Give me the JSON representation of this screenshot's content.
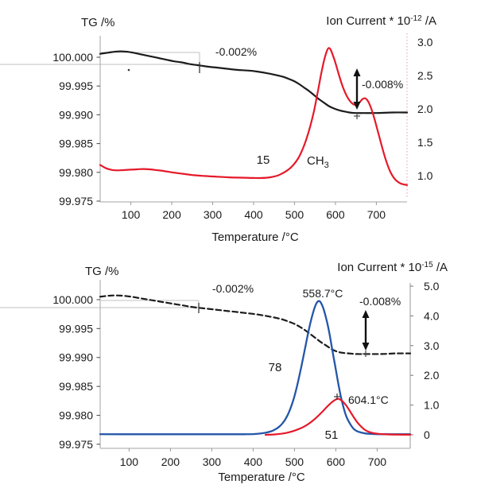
{
  "figure": {
    "background": "#ffffff",
    "description": "TGA-MS thermogravimetry with ion current curves"
  },
  "chart_data": [
    {
      "id": "top-panel",
      "type": "line",
      "left_axis_title": "TG /%",
      "right_axis_title": {
        "prefix": "Ion Current * 10",
        "exponent": "-12",
        "suffix": " /A"
      },
      "xlabel": "Temperature /°C",
      "x_ticks": [
        "100",
        "200",
        "300",
        "400",
        "500",
        "600",
        "700"
      ],
      "left_ticks": [
        "100.000",
        "99.995",
        "99.990",
        "99.985",
        "99.980",
        "99.975"
      ],
      "right_ticks": [
        "3.0",
        "2.5",
        "2.0",
        "1.5",
        "1.0"
      ],
      "xlim": [
        25,
        775
      ],
      "ylim_left": [
        99.97486,
        100.00373
      ],
      "ylim_right": [
        0.6071,
        3.0952
      ],
      "annotations": {
        "step1_label": "-0.002%",
        "step2_label": "-0.008%",
        "mz_label": "15",
        "species_label": "CH",
        "species_sub": "3"
      },
      "series": [
        {
          "name": "TG",
          "axis": "left",
          "color": "#1c1c1c",
          "dash": "solid",
          "width": 2.2,
          "points": [
            [
              25,
              100.0006
            ],
            [
              45,
              100.0008
            ],
            [
              65,
              100.001
            ],
            [
              85,
              100.001
            ],
            [
              105,
              100.0008
            ],
            [
              125,
              100.0005
            ],
            [
              145,
              100.0002
            ],
            [
              165,
              99.9999
            ],
            [
              185,
              99.9996
            ],
            [
              205,
              99.9993
            ],
            [
              225,
              99.9991
            ],
            [
              245,
              99.9988
            ],
            [
              265,
              99.9986
            ],
            [
              285,
              99.9984
            ],
            [
              310,
              99.9982
            ],
            [
              335,
              99.998
            ],
            [
              360,
              99.9978
            ],
            [
              385,
              99.9977
            ],
            [
              410,
              99.9975
            ],
            [
              435,
              99.9972
            ],
            [
              455,
              99.9969
            ],
            [
              472,
              99.9966
            ],
            [
              487,
              99.9962
            ],
            [
              500,
              99.9958
            ],
            [
              512,
              99.9953
            ],
            [
              524,
              99.9947
            ],
            [
              536,
              99.9941
            ],
            [
              548,
              99.9934
            ],
            [
              560,
              99.9927
            ],
            [
              572,
              99.9921
            ],
            [
              584,
              99.9915
            ],
            [
              596,
              99.9911
            ],
            [
              608,
              99.9908
            ],
            [
              620,
              99.9906
            ],
            [
              634,
              99.9904
            ],
            [
              650,
              99.9903
            ],
            [
              670,
              99.9903
            ],
            [
              700,
              99.9903
            ],
            [
              740,
              99.9904
            ],
            [
              775,
              99.9904
            ]
          ]
        },
        {
          "name": "m/z 15 (CH3)",
          "axis": "right",
          "color": "#e5192a",
          "dash": "solid",
          "width": 2.2,
          "points": [
            [
              25,
              1.16
            ],
            [
              40,
              1.11
            ],
            [
              55,
              1.085
            ],
            [
              70,
              1.08
            ],
            [
              85,
              1.085
            ],
            [
              100,
              1.09
            ],
            [
              115,
              1.095
            ],
            [
              130,
              1.1
            ],
            [
              145,
              1.095
            ],
            [
              160,
              1.085
            ],
            [
              180,
              1.07
            ],
            [
              200,
              1.05
            ],
            [
              225,
              1.03
            ],
            [
              250,
              1.01
            ],
            [
              280,
              0.995
            ],
            [
              310,
              0.985
            ],
            [
              340,
              0.975
            ],
            [
              370,
              0.97
            ],
            [
              400,
              0.965
            ],
            [
              420,
              0.965
            ],
            [
              440,
              0.975
            ],
            [
              458,
              1.0
            ],
            [
              472,
              1.04
            ],
            [
              485,
              1.09
            ],
            [
              497,
              1.16
            ],
            [
              508,
              1.25
            ],
            [
              518,
              1.37
            ],
            [
              528,
              1.53
            ],
            [
              538,
              1.73
            ],
            [
              548,
              1.98
            ],
            [
              557,
              2.26
            ],
            [
              565,
              2.52
            ],
            [
              572,
              2.72
            ],
            [
              578,
              2.85
            ],
            [
              583,
              2.91
            ],
            [
              588,
              2.89
            ],
            [
              594,
              2.8
            ],
            [
              601,
              2.67
            ],
            [
              609,
              2.5
            ],
            [
              618,
              2.33
            ],
            [
              628,
              2.19
            ],
            [
              638,
              2.1
            ],
            [
              648,
              2.06
            ],
            [
              656,
              2.08
            ],
            [
              665,
              2.14
            ],
            [
              672,
              2.16
            ],
            [
              679,
              2.12
            ],
            [
              686,
              2.03
            ],
            [
              694,
              1.88
            ],
            [
              703,
              1.68
            ],
            [
              713,
              1.45
            ],
            [
              723,
              1.24
            ],
            [
              734,
              1.06
            ],
            [
              745,
              0.95
            ],
            [
              757,
              0.89
            ],
            [
              766,
              0.87
            ],
            [
              775,
              0.86
            ]
          ]
        }
      ]
    },
    {
      "id": "bottom-panel",
      "type": "line",
      "left_axis_title": "TG /%",
      "right_axis_title": {
        "prefix": "Ion Current * 10",
        "exponent": "-15",
        "suffix": " /A"
      },
      "xlabel": "Temperature /°C",
      "x_ticks": [
        "100",
        "200",
        "300",
        "400",
        "500",
        "600",
        "700"
      ],
      "left_ticks": [
        "100.000",
        "99.995",
        "99.990",
        "99.985",
        "99.980",
        "99.975"
      ],
      "right_ticks": [
        "5.0",
        "4.0",
        "3.0",
        "2.0",
        "1.0",
        "0"
      ],
      "xlim": [
        30,
        780
      ],
      "ylim_left": [
        99.9743,
        100.00343
      ],
      "ylim_right": [
        -0.4545,
        5.214
      ],
      "annotations": {
        "step1_label": "-0.002%",
        "step2_label": "-0.008%",
        "peak1_label": "558.7°C",
        "peak2_label": "604.1°C",
        "mz1_label": "78",
        "mz2_label": "51"
      },
      "series": [
        {
          "name": "TG",
          "axis": "left",
          "color": "#1c1c1c",
          "dash": "dashed",
          "width": 2.2,
          "points": [
            [
              30,
              100.0005
            ],
            [
              55,
              100.0007
            ],
            [
              80,
              100.0007
            ],
            [
              105,
              100.0005
            ],
            [
              130,
              100.0002
            ],
            [
              155,
              99.9999
            ],
            [
              180,
              99.9996
            ],
            [
              205,
              99.9993
            ],
            [
              230,
              99.999
            ],
            [
              255,
              99.9987
            ],
            [
              280,
              99.9985
            ],
            [
              305,
              99.9983
            ],
            [
              330,
              99.9981
            ],
            [
              355,
              99.9979
            ],
            [
              380,
              99.9977
            ],
            [
              405,
              99.9975
            ],
            [
              430,
              99.9972
            ],
            [
              452,
              99.9969
            ],
            [
              470,
              99.9966
            ],
            [
              486,
              99.9962
            ],
            [
              500,
              99.9958
            ],
            [
              513,
              99.9953
            ],
            [
              526,
              99.9947
            ],
            [
              539,
              99.994
            ],
            [
              552,
              99.9933
            ],
            [
              565,
              99.9926
            ],
            [
              578,
              99.992
            ],
            [
              591,
              99.9914
            ],
            [
              604,
              99.991
            ],
            [
              617,
              99.9908
            ],
            [
              632,
              99.9907
            ],
            [
              650,
              99.9906
            ],
            [
              675,
              99.9906
            ],
            [
              710,
              99.9906
            ],
            [
              745,
              99.9907
            ],
            [
              780,
              99.9907
            ]
          ]
        },
        {
          "name": "m/z 78",
          "axis": "right",
          "color": "#2456a8",
          "dash": "solid",
          "width": 2.3,
          "points": [
            [
              30,
              0.02
            ],
            [
              120,
              0.02
            ],
            [
              220,
              0.02
            ],
            [
              320,
              0.02
            ],
            [
              380,
              0.02
            ],
            [
              400,
              0.025
            ],
            [
              415,
              0.04
            ],
            [
              430,
              0.07
            ],
            [
              442,
              0.11
            ],
            [
              452,
              0.17
            ],
            [
              462,
              0.26
            ],
            [
              472,
              0.4
            ],
            [
              482,
              0.62
            ],
            [
              492,
              0.95
            ],
            [
              500,
              1.3
            ],
            [
              508,
              1.75
            ],
            [
              516,
              2.25
            ],
            [
              524,
              2.8
            ],
            [
              532,
              3.35
            ],
            [
              540,
              3.85
            ],
            [
              547,
              4.2
            ],
            [
              553,
              4.42
            ],
            [
              559,
              4.5
            ],
            [
              564,
              4.44
            ],
            [
              570,
              4.25
            ],
            [
              577,
              3.9
            ],
            [
              584,
              3.45
            ],
            [
              591,
              2.9
            ],
            [
              598,
              2.35
            ],
            [
              605,
              1.8
            ],
            [
              612,
              1.3
            ],
            [
              619,
              0.9
            ],
            [
              626,
              0.6
            ],
            [
              634,
              0.38
            ],
            [
              642,
              0.22
            ],
            [
              650,
              0.13
            ],
            [
              660,
              0.08
            ],
            [
              672,
              0.045
            ],
            [
              685,
              0.03
            ],
            [
              700,
              0.022
            ],
            [
              740,
              0.02
            ],
            [
              780,
              0.02
            ]
          ]
        },
        {
          "name": "m/z 51",
          "axis": "right",
          "color": "#e5192a",
          "dash": "solid",
          "width": 2.2,
          "points": [
            [
              430,
              0.0
            ],
            [
              450,
              0.012
            ],
            [
              468,
              0.035
            ],
            [
              484,
              0.075
            ],
            [
              500,
              0.14
            ],
            [
              515,
              0.22
            ],
            [
              530,
              0.33
            ],
            [
              544,
              0.47
            ],
            [
              557,
              0.63
            ],
            [
              569,
              0.8
            ],
            [
              580,
              0.96
            ],
            [
              590,
              1.09
            ],
            [
              598,
              1.17
            ],
            [
              604,
              1.21
            ],
            [
              610,
              1.19
            ],
            [
              617,
              1.12
            ],
            [
              625,
              0.99
            ],
            [
              634,
              0.8
            ],
            [
              643,
              0.6
            ],
            [
              652,
              0.42
            ],
            [
              661,
              0.28
            ],
            [
              670,
              0.17
            ],
            [
              680,
              0.1
            ],
            [
              690,
              0.06
            ],
            [
              702,
              0.035
            ],
            [
              715,
              0.02
            ],
            [
              730,
              0.01
            ],
            [
              750,
              0.005
            ],
            [
              780,
              0.003
            ]
          ]
        }
      ]
    }
  ]
}
